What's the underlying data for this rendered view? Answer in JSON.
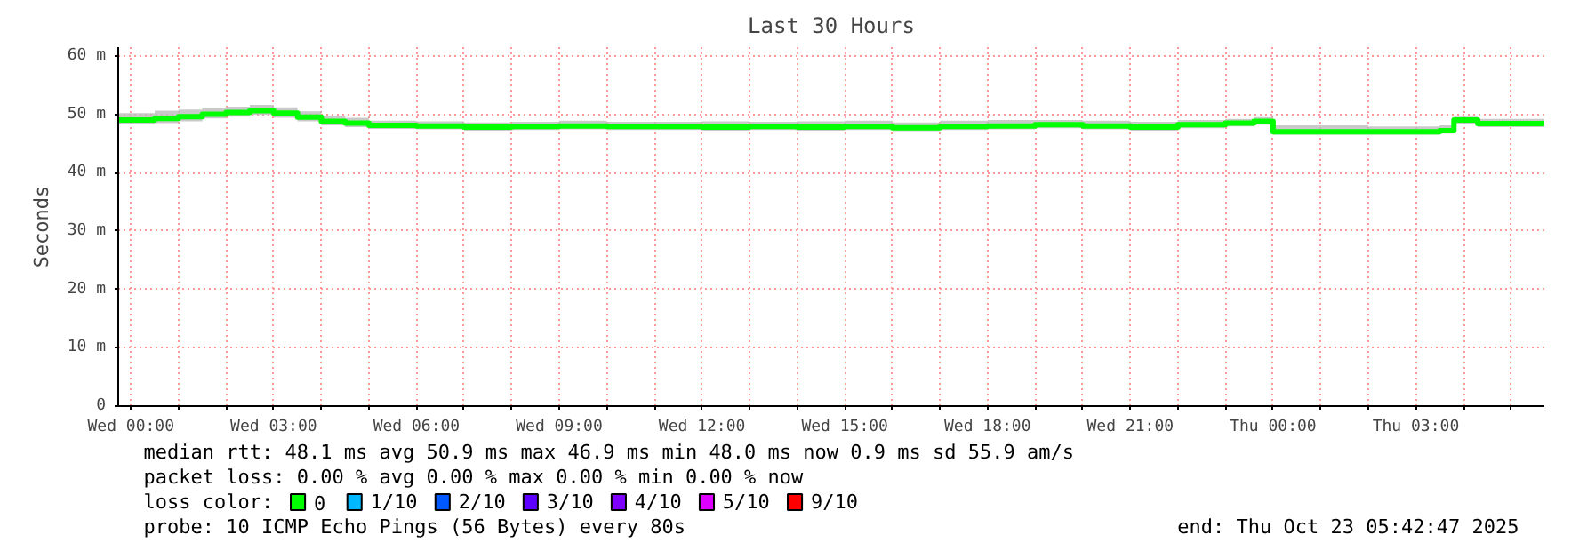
{
  "chart_data": {
    "type": "step",
    "title": "Last 30 Hours",
    "ylabel": "Seconds",
    "xlim": [
      "2025-10-21T23:44",
      "2025-10-23T05:42"
    ],
    "ylim": [
      0,
      61.5
    ],
    "xticks": [
      {
        "value": "2025-10-22T00:00",
        "label": "Wed 00:00"
      },
      {
        "value": "2025-10-22T01:00",
        "label": null
      },
      {
        "value": "2025-10-22T02:00",
        "label": null
      },
      {
        "value": "2025-10-22T03:00",
        "label": "Wed 03:00"
      },
      {
        "value": "2025-10-22T04:00",
        "label": null
      },
      {
        "value": "2025-10-22T05:00",
        "label": null
      },
      {
        "value": "2025-10-22T06:00",
        "label": "Wed 06:00"
      },
      {
        "value": "2025-10-22T07:00",
        "label": null
      },
      {
        "value": "2025-10-22T08:00",
        "label": null
      },
      {
        "value": "2025-10-22T09:00",
        "label": "Wed 09:00"
      },
      {
        "value": "2025-10-22T10:00",
        "label": null
      },
      {
        "value": "2025-10-22T11:00",
        "label": null
      },
      {
        "value": "2025-10-22T12:00",
        "label": "Wed 12:00"
      },
      {
        "value": "2025-10-22T13:00",
        "label": null
      },
      {
        "value": "2025-10-22T14:00",
        "label": null
      },
      {
        "value": "2025-10-22T15:00",
        "label": "Wed 15:00"
      },
      {
        "value": "2025-10-22T16:00",
        "label": null
      },
      {
        "value": "2025-10-22T17:00",
        "label": null
      },
      {
        "value": "2025-10-22T18:00",
        "label": "Wed 18:00"
      },
      {
        "value": "2025-10-22T19:00",
        "label": null
      },
      {
        "value": "2025-10-22T20:00",
        "label": null
      },
      {
        "value": "2025-10-22T21:00",
        "label": "Wed 21:00"
      },
      {
        "value": "2025-10-22T22:00",
        "label": null
      },
      {
        "value": "2025-10-22T23:00",
        "label": null
      },
      {
        "value": "2025-10-23T00:00",
        "label": "Thu 00:00"
      },
      {
        "value": "2025-10-23T01:00",
        "label": null
      },
      {
        "value": "2025-10-23T02:00",
        "label": null
      },
      {
        "value": "2025-10-23T03:00",
        "label": "Thu 03:00"
      },
      {
        "value": "2025-10-23T04:00",
        "label": null
      },
      {
        "value": "2025-10-23T05:00",
        "label": null
      }
    ],
    "yticks": [
      0,
      {
        "value": 10,
        "label": "10 m"
      },
      {
        "value": 20,
        "label": "20 m"
      },
      {
        "value": 30,
        "label": "30 m"
      },
      {
        "value": 40,
        "label": "40 m"
      },
      {
        "value": 50,
        "label": "50 m"
      },
      {
        "value": 60,
        "label": "60 m"
      }
    ],
    "grid": true,
    "legend": "bottom",
    "legend_title": "loss color:",
    "series": [
      {
        "name": "0",
        "color": "#00ff00",
        "x": [
          "2025-10-21T23:44",
          "2025-10-22T00:30",
          "2025-10-22T01:00",
          "2025-10-22T01:30",
          "2025-10-22T02:00",
          "2025-10-22T02:30",
          "2025-10-22T03:00",
          "2025-10-22T03:30",
          "2025-10-22T04:00",
          "2025-10-22T04:30",
          "2025-10-22T05:00",
          "2025-10-22T06:00",
          "2025-10-22T07:00",
          "2025-10-22T08:00",
          "2025-10-22T09:00",
          "2025-10-22T10:00",
          "2025-10-22T11:00",
          "2025-10-22T12:00",
          "2025-10-22T13:00",
          "2025-10-22T14:00",
          "2025-10-22T15:00",
          "2025-10-22T16:00",
          "2025-10-22T17:00",
          "2025-10-22T18:00",
          "2025-10-22T19:00",
          "2025-10-22T20:00",
          "2025-10-22T21:00",
          "2025-10-22T22:00",
          "2025-10-22T23:00",
          "2025-10-22T23:36",
          "2025-10-23T00:00",
          "2025-10-23T01:00",
          "2025-10-23T02:00",
          "2025-10-23T03:00",
          "2025-10-23T03:30",
          "2025-10-23T03:48",
          "2025-10-23T04:18",
          "2025-10-23T05:42"
        ],
        "values": [
          49.0,
          49.3,
          49.6,
          50.0,
          50.3,
          50.6,
          50.2,
          49.5,
          48.8,
          48.5,
          48.1,
          48.0,
          47.8,
          47.9,
          48.0,
          47.9,
          47.9,
          47.8,
          47.9,
          47.8,
          47.9,
          47.7,
          47.9,
          48.0,
          48.2,
          48.0,
          47.8,
          48.2,
          48.5,
          48.8,
          47.0,
          47.0,
          47.0,
          47.0,
          47.2,
          49.0,
          48.4,
          48.0
        ],
        "lower": [
          48.3,
          48.5,
          48.8,
          49.3,
          49.6,
          49.9,
          49.4,
          48.8,
          48.1,
          47.8,
          47.5,
          47.4,
          47.2,
          47.3,
          47.4,
          47.3,
          47.3,
          47.2,
          47.3,
          47.2,
          47.3,
          47.1,
          47.3,
          47.4,
          47.6,
          47.4,
          47.2,
          47.6,
          47.9,
          48.2,
          46.5,
          46.5,
          46.5,
          46.5,
          46.7,
          48.4,
          47.8,
          47.4
        ],
        "upper": [
          50.2,
          50.6,
          50.8,
          51.1,
          51.3,
          51.6,
          51.2,
          50.5,
          49.7,
          49.4,
          48.9,
          48.8,
          48.6,
          48.7,
          48.9,
          48.7,
          48.7,
          48.8,
          48.7,
          48.8,
          48.9,
          48.6,
          48.9,
          49.0,
          49.0,
          48.9,
          48.7,
          49.0,
          49.2,
          49.5,
          48.1,
          48.1,
          47.9,
          47.9,
          48.1,
          49.6,
          49.2,
          48.9
        ]
      },
      {
        "name": "1/10",
        "color": "#00b8ff"
      },
      {
        "name": "2/10",
        "color": "#0059ff"
      },
      {
        "name": "3/10",
        "color": "#5e00ff"
      },
      {
        "name": "4/10",
        "color": "#7e00ff"
      },
      {
        "name": "5/10",
        "color": "#dd00ff"
      },
      {
        "name": "9/10",
        "color": "#ff0000"
      }
    ],
    "annotations": [
      "median rtt:  48.1 ms avg  50.9 ms max  46.9 ms min  48.0 ms now  0.9 ms sd  55.9   am/s",
      "packet loss: 0.00 % avg  0.00 % max  0.00 % min  0.00 % now",
      "probe:       10 ICMP Echo Pings (56 Bytes) every 80s",
      "end: Thu Oct 23 05:42:47 2025"
    ]
  }
}
